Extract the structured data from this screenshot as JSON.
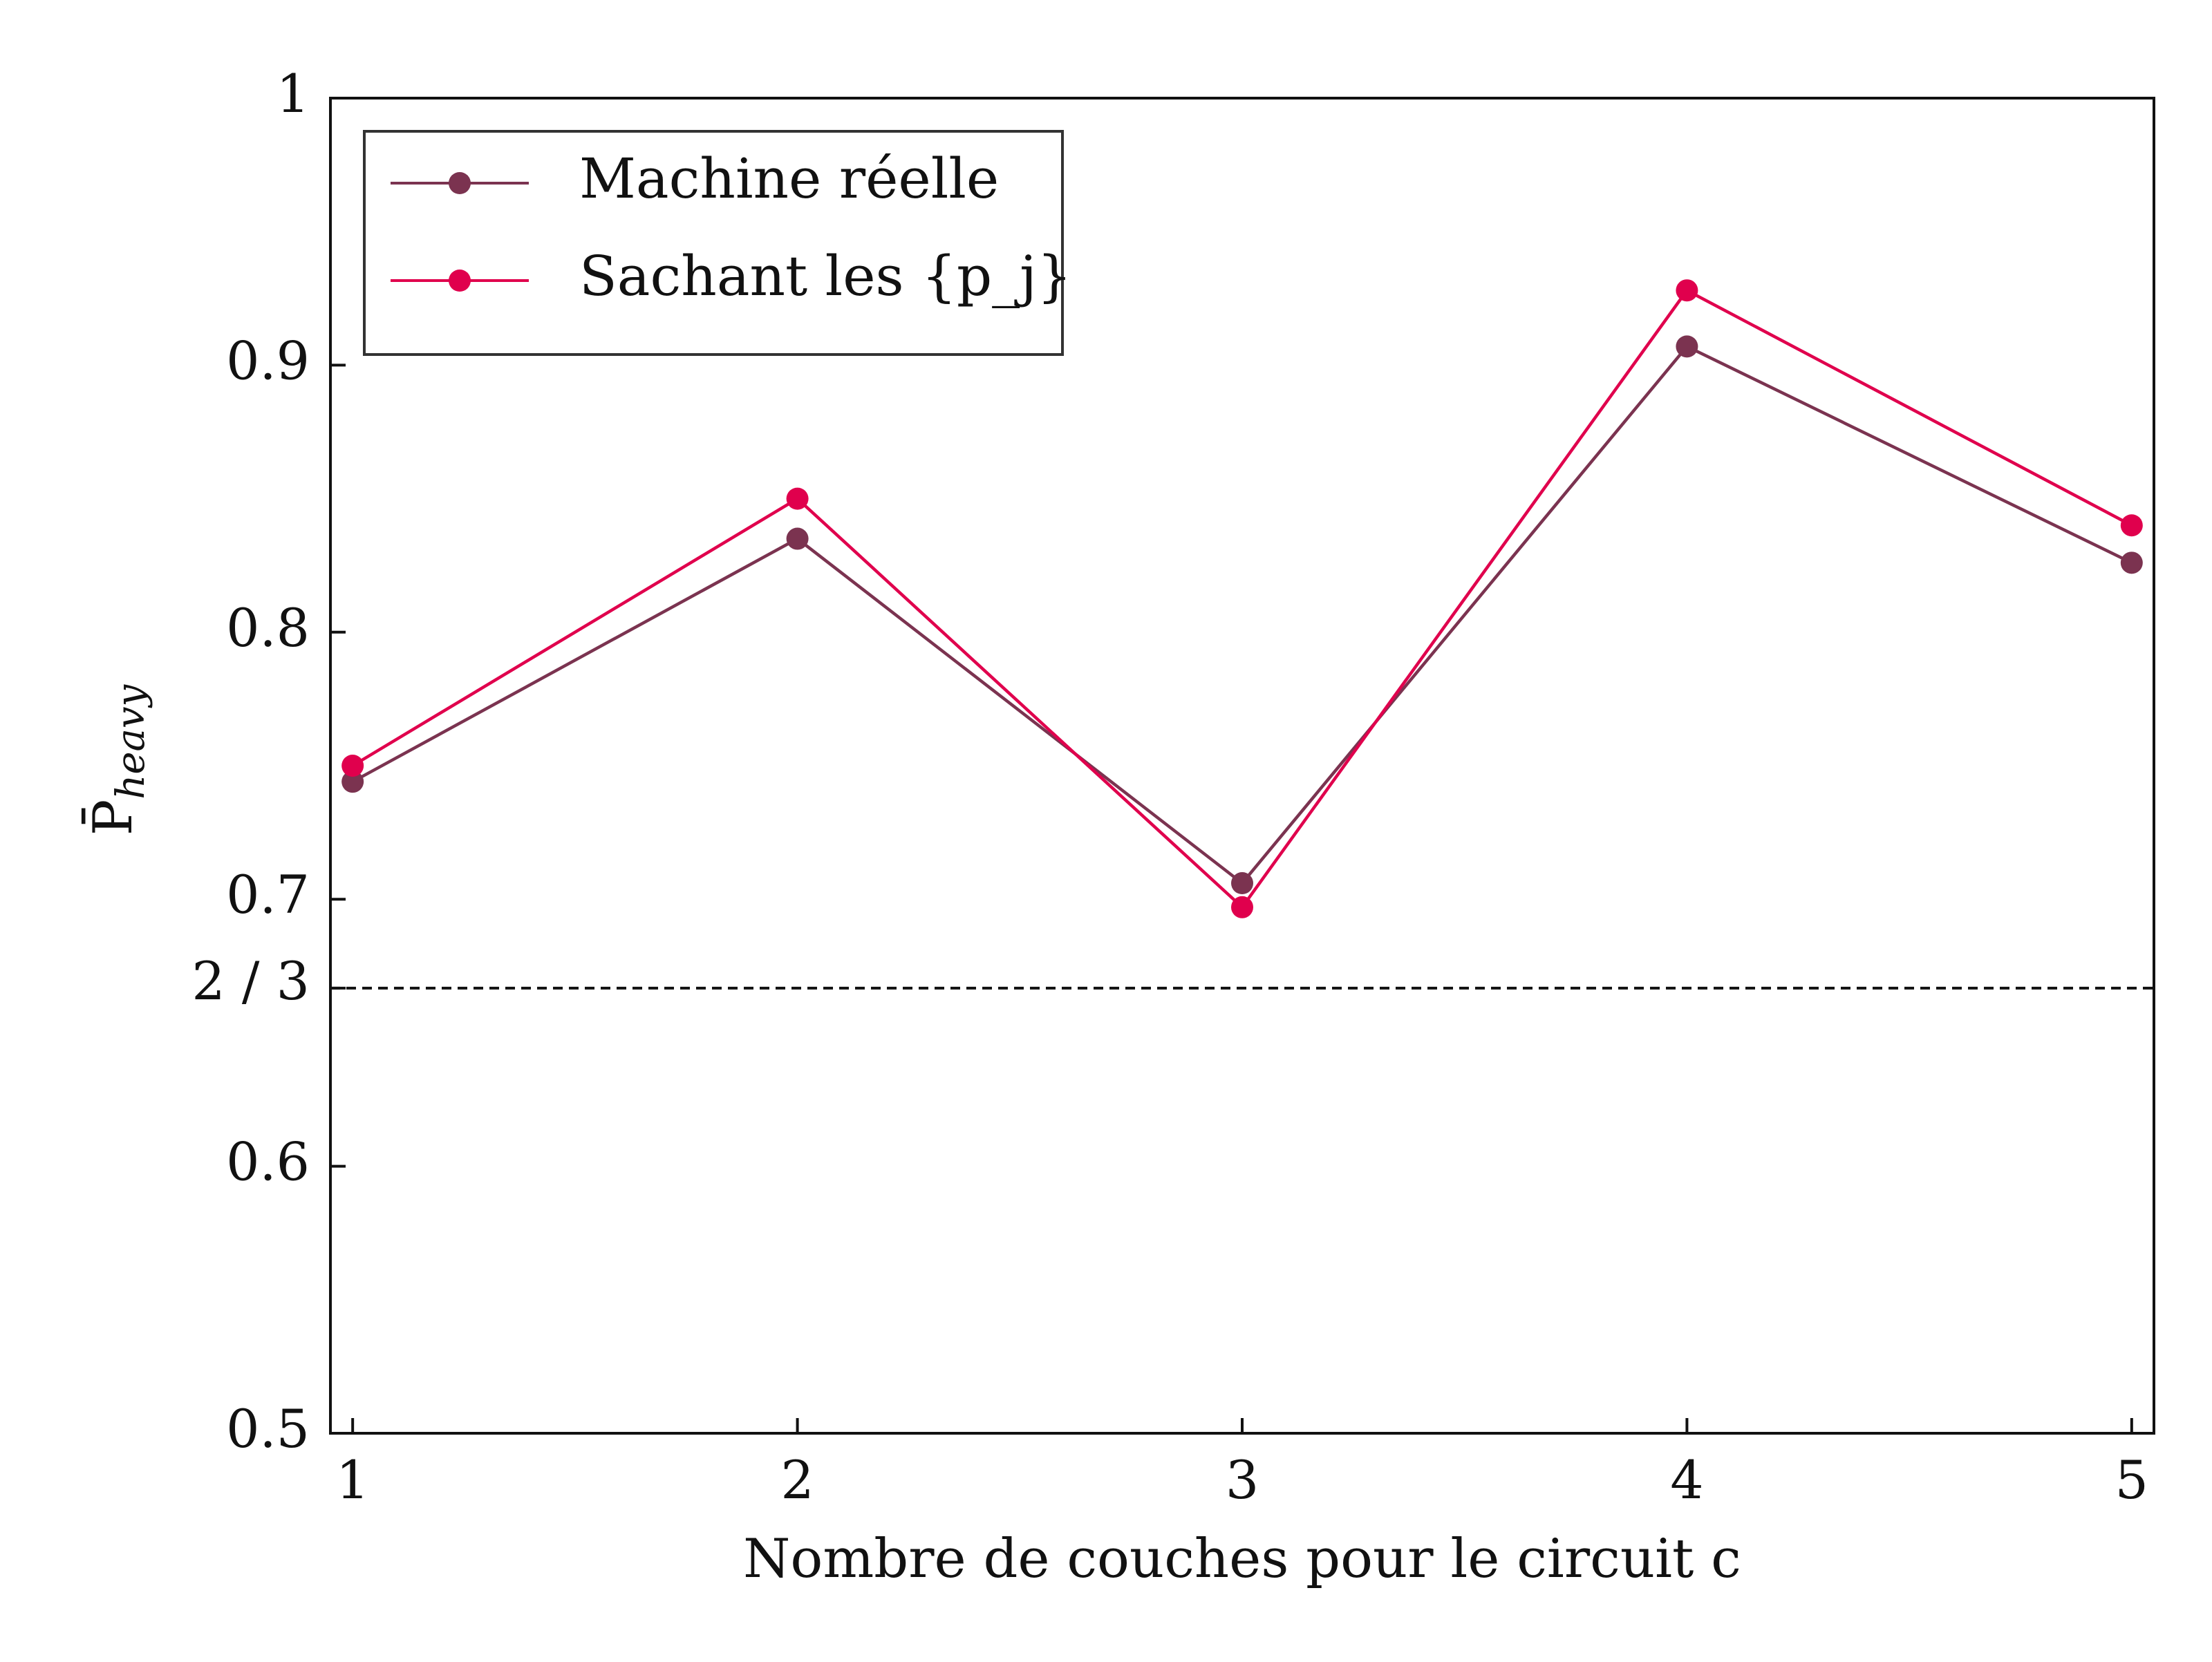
{
  "chart_data": {
    "type": "line",
    "x": [
      1,
      2,
      3,
      4,
      5
    ],
    "series": [
      {
        "name": "Machine réelle",
        "color": "#7b3350",
        "values": [
          0.744,
          0.835,
          0.706,
          0.907,
          0.826
        ]
      },
      {
        "name": "Sachant les {p_j}",
        "color": "#e0004d",
        "values": [
          0.75,
          0.85,
          0.697,
          0.928,
          0.84
        ]
      }
    ],
    "reference_line": {
      "value": 0.6667,
      "label": "2 / 3",
      "style": "dashed",
      "color": "#111111"
    },
    "xlabel": "Nombre de couches pour le circuit c",
    "ylabel": "P̄heavy",
    "xlim": [
      0.95,
      5.05
    ],
    "ylim": [
      0.5,
      1.0
    ],
    "xticks": [
      1,
      2,
      3,
      4,
      5
    ],
    "xtick_labels": [
      "1",
      "2",
      "3",
      "4",
      "5"
    ],
    "yticks": [
      0.5,
      0.6,
      0.7,
      0.8,
      0.9,
      1.0
    ],
    "ytick_labels": [
      "0.5",
      "0.6",
      "0.7",
      "0.8",
      "0.9",
      "1"
    ],
    "grid": false,
    "legend_position": "top-left"
  }
}
